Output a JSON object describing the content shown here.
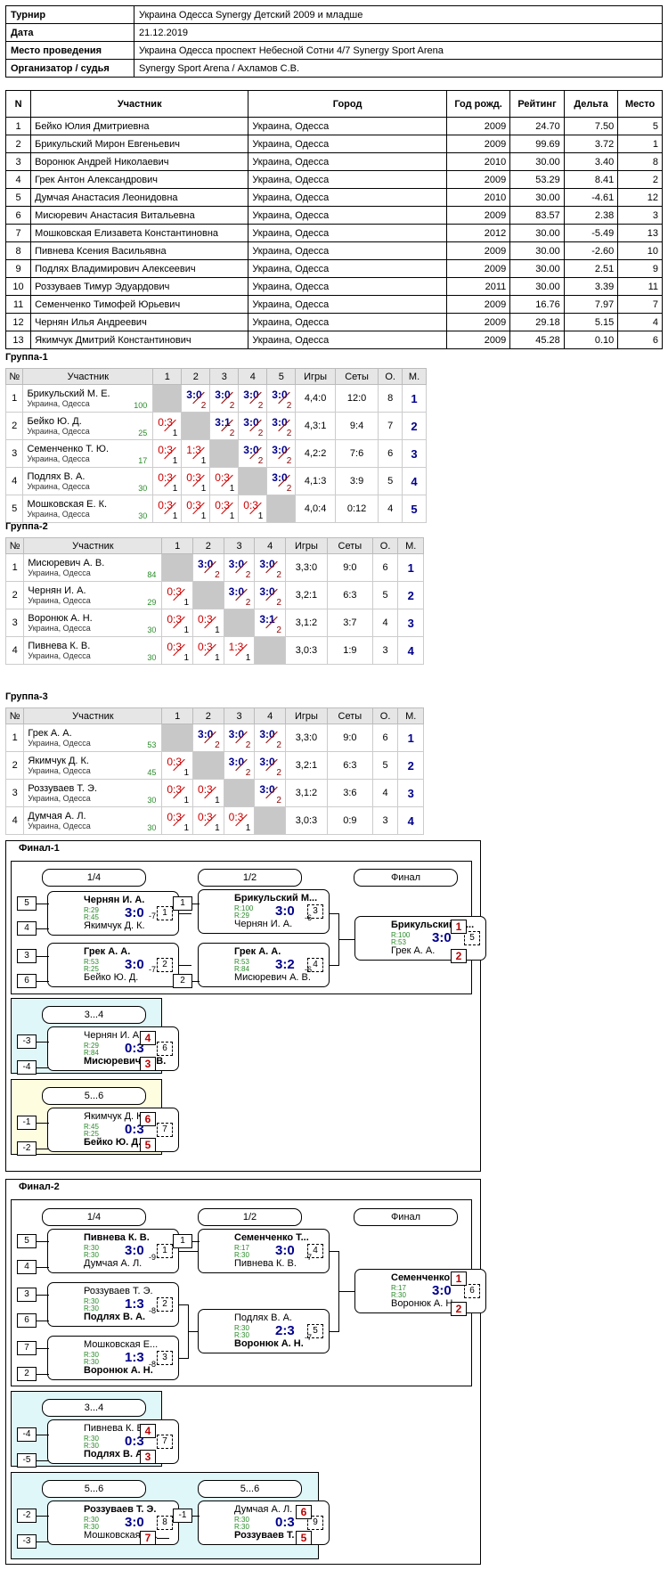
{
  "info": {
    "rows": [
      {
        "k": "Турнир",
        "v": "Украина Одесса  Synergy Детский 2009 и младше"
      },
      {
        "k": "Дата",
        "v": "21.12.2019"
      },
      {
        "k": "Место проведения",
        "v": "Украина Одесса проспект Небесной Сотни 4/7 Synergy Sport Arena"
      },
      {
        "k": "Организатор / судья",
        "v": "Synergy Sport Arena / Ахламов С.В."
      }
    ]
  },
  "participants": {
    "headers": [
      "N",
      "Участник",
      "Город",
      "Год рожд.",
      "Рейтинг",
      "Дельта",
      "Место"
    ],
    "rows": [
      [
        "1",
        "Бейко Юлия Дмитриевна",
        "Украина, Одесса",
        "2009",
        "24.70",
        "7.50",
        "5"
      ],
      [
        "2",
        "Брикульский Мирон Евгеньевич",
        "Украина, Одесса",
        "2009",
        "99.69",
        "3.72",
        "1"
      ],
      [
        "3",
        "Воронюк Андрей Николаевич",
        "Украина, Одесса",
        "2010",
        "30.00",
        "3.40",
        "8"
      ],
      [
        "4",
        "Грек Антон Александрович",
        "Украина, Одесса",
        "2009",
        "53.29",
        "8.41",
        "2"
      ],
      [
        "5",
        "Думчая Анастасия Леонидовна",
        "Украина, Одесса",
        "2010",
        "30.00",
        "-4.61",
        "12"
      ],
      [
        "6",
        "Мисюревич Анастасия Витальевна",
        "Украина, Одесса",
        "2009",
        "83.57",
        "2.38",
        "3"
      ],
      [
        "7",
        "Мошковская Елизавета Константиновна",
        "Украина, Одесса",
        "2012",
        "30.00",
        "-5.49",
        "13"
      ],
      [
        "8",
        "Пивнева Ксения Васильявна",
        "Украина, Одесса",
        "2009",
        "30.00",
        "-2.60",
        "10"
      ],
      [
        "9",
        "Подлях Владимирович Алексеевич",
        "Украина, Одесса",
        "2009",
        "30.00",
        "2.51",
        "9"
      ],
      [
        "10",
        "Роззуваев Тимур Эдуардович",
        "Украина, Одесса",
        "2011",
        "30.00",
        "3.39",
        "11"
      ],
      [
        "11",
        "Семенченко Тимофей Юрьевич",
        "Украина, Одесса",
        "2009",
        "16.76",
        "7.97",
        "7"
      ],
      [
        "12",
        "Чернян Илья Андреевич",
        "Украина, Одесса",
        "2009",
        "29.18",
        "5.15",
        "4"
      ],
      [
        "13",
        "Якимчук Дмитрий Константинович",
        "Украина, Одесса",
        "2009",
        "45.28",
        "0.10",
        "6"
      ]
    ]
  },
  "groups": [
    {
      "title": "Группа-1",
      "headers": [
        "№",
        "Участник",
        "1",
        "2",
        "3",
        "4",
        "5",
        "Игры",
        "Сеты",
        "О.",
        "М."
      ],
      "rows": [
        {
          "n": "1",
          "name": "Брикульский М. Е.",
          "city": "Украина, Одесса",
          "r": "100",
          "cells": [
            null,
            [
              "3:0",
              "2"
            ],
            [
              "3:0",
              "2"
            ],
            [
              "3:0",
              "2"
            ],
            [
              "3:0",
              "2"
            ]
          ],
          "games": "4,4:0",
          "sets": "12:0",
          "o": "8",
          "m": "1"
        },
        {
          "n": "2",
          "name": "Бейко Ю. Д.",
          "city": "Украина, Одесса",
          "r": "25",
          "cells": [
            [
              "0:3",
              "1"
            ],
            null,
            [
              "3:1",
              "2"
            ],
            [
              "3:0",
              "2"
            ],
            [
              "3:0",
              "2"
            ]
          ],
          "games": "4,3:1",
          "sets": "9:4",
          "o": "7",
          "m": "2"
        },
        {
          "n": "3",
          "name": "Семенченко Т. Ю.",
          "city": "Украина, Одесса",
          "r": "17",
          "cells": [
            [
              "0:3",
              "1"
            ],
            [
              "1:3",
              "1"
            ],
            null,
            [
              "3:0",
              "2"
            ],
            [
              "3:0",
              "2"
            ]
          ],
          "games": "4,2:2",
          "sets": "7:6",
          "o": "6",
          "m": "3"
        },
        {
          "n": "4",
          "name": "Подлях В. А.",
          "city": "Украина, Одесса",
          "r": "30",
          "cells": [
            [
              "0:3",
              "1"
            ],
            [
              "0:3",
              "1"
            ],
            [
              "0:3",
              "1"
            ],
            null,
            [
              "3:0",
              "2"
            ]
          ],
          "games": "4,1:3",
          "sets": "3:9",
          "o": "5",
          "m": "4"
        },
        {
          "n": "5",
          "name": "Мошковская Е. К.",
          "city": "Украина, Одесса",
          "r": "30",
          "cells": [
            [
              "0:3",
              "1"
            ],
            [
              "0:3",
              "1"
            ],
            [
              "0:3",
              "1"
            ],
            [
              "0:3",
              "1"
            ],
            null
          ],
          "games": "4,0:4",
          "sets": "0:12",
          "o": "4",
          "m": "5"
        }
      ]
    },
    {
      "title": "Группа-2",
      "headers": [
        "№",
        "Участник",
        "1",
        "2",
        "3",
        "4",
        "Игры",
        "Сеты",
        "О.",
        "М."
      ],
      "rows": [
        {
          "n": "1",
          "name": "Мисюревич А. В.",
          "city": "Украина, Одесса",
          "r": "84",
          "cells": [
            null,
            [
              "3:0",
              "2"
            ],
            [
              "3:0",
              "2"
            ],
            [
              "3:0",
              "2"
            ]
          ],
          "games": "3,3:0",
          "sets": "9:0",
          "o": "6",
          "m": "1"
        },
        {
          "n": "2",
          "name": "Чернян И. А.",
          "city": "Украина, Одесса",
          "r": "29",
          "cells": [
            [
              "0:3",
              "1"
            ],
            null,
            [
              "3:0",
              "2"
            ],
            [
              "3:0",
              "2"
            ]
          ],
          "games": "3,2:1",
          "sets": "6:3",
          "o": "5",
          "m": "2"
        },
        {
          "n": "3",
          "name": "Воронюк А. Н.",
          "city": "Украина, Одесса",
          "r": "30",
          "cells": [
            [
              "0:3",
              "1"
            ],
            [
              "0:3",
              "1"
            ],
            null,
            [
              "3:1",
              "2"
            ]
          ],
          "games": "3,1:2",
          "sets": "3:7",
          "o": "4",
          "m": "3"
        },
        {
          "n": "4",
          "name": "Пивнева К. В.",
          "city": "Украина, Одесса",
          "r": "30",
          "cells": [
            [
              "0:3",
              "1"
            ],
            [
              "0:3",
              "1"
            ],
            [
              "1:3",
              "1"
            ],
            null
          ],
          "games": "3,0:3",
          "sets": "1:9",
          "o": "3",
          "m": "4"
        }
      ]
    },
    {
      "title": "Группа-3",
      "headers": [
        "№",
        "Участник",
        "1",
        "2",
        "3",
        "4",
        "Игры",
        "Сеты",
        "О.",
        "М."
      ],
      "rows": [
        {
          "n": "1",
          "name": "Грек А. А.",
          "city": "Украина, Одесса",
          "r": "53",
          "cells": [
            null,
            [
              "3:0",
              "2"
            ],
            [
              "3:0",
              "2"
            ],
            [
              "3:0",
              "2"
            ]
          ],
          "games": "3,3:0",
          "sets": "9:0",
          "o": "6",
          "m": "1"
        },
        {
          "n": "2",
          "name": "Якимчук Д. К.",
          "city": "Украина, Одесса",
          "r": "45",
          "cells": [
            [
              "0:3",
              "1"
            ],
            null,
            [
              "3:0",
              "2"
            ],
            [
              "3:0",
              "2"
            ]
          ],
          "games": "3,2:1",
          "sets": "6:3",
          "o": "5",
          "m": "2"
        },
        {
          "n": "3",
          "name": "Роззуваев Т. Э.",
          "city": "Украина, Одесса",
          "r": "30",
          "cells": [
            [
              "0:3",
              "1"
            ],
            [
              "0:3",
              "1"
            ],
            null,
            [
              "3:0",
              "2"
            ]
          ],
          "games": "3,1:2",
          "sets": "3:6",
          "o": "4",
          "m": "3"
        },
        {
          "n": "4",
          "name": "Думчая А. Л.",
          "city": "Украина, Одесса",
          "r": "30",
          "cells": [
            [
              "0:3",
              "1"
            ],
            [
              "0:3",
              "1"
            ],
            [
              "0:3",
              "1"
            ],
            null
          ],
          "games": "3,0:3",
          "sets": "0:9",
          "o": "3",
          "m": "4"
        }
      ]
    }
  ],
  "final1": {
    "title": "Финал-1",
    "rounds": [
      "1/4",
      "1/2",
      "Финал"
    ],
    "m1": {
      "a": "Чернян И. А.",
      "ra": "R:29",
      "b": "Якимчук Д. К.",
      "rb": "R:45",
      "score": "3:0",
      "no": "1",
      "sa": "5",
      "sb": "4",
      "out": "-7"
    },
    "m2": {
      "a": "Грек А. А.",
      "ra": "R:53",
      "b": "Бейко Ю. Д.",
      "rb": "R:25",
      "score": "3:0",
      "no": "2",
      "sa": "3",
      "sb": "6",
      "out": "-7"
    },
    "m3": {
      "a": "Брикульский М...",
      "ra": "R:100",
      "b": "Чернян И. А.",
      "rb": "R:29",
      "score": "3:0",
      "no": "3",
      "sa": "1",
      "out": "-6"
    },
    "m4": {
      "a": "Грек А. А.",
      "ra": "R:53",
      "b": "Мисюревич А. В.",
      "rb": "R:84",
      "score": "3:2",
      "no": "4",
      "sb": "2",
      "out": "-6"
    },
    "m5": {
      "a": "Брикульский М...",
      "ra": "R:100",
      "b": "Грек А. А.",
      "rb": "R:53",
      "score": "3:0",
      "no": "5",
      "pa": "1",
      "pb": "2"
    },
    "b34": {
      "title": "3...4",
      "a": "Чернян И. А.",
      "ra": "R:29",
      "b": "Мисюревич А. В.",
      "rb": "R:84",
      "score": "0:3",
      "no": "6",
      "sa": "-3",
      "sb": "-4",
      "pa": "4",
      "pb": "3"
    },
    "b56": {
      "title": "5...6",
      "a": "Якимчук Д. К.",
      "ra": "R:45",
      "b": "Бейко Ю. Д.",
      "rb": "R:25",
      "score": "0:3",
      "no": "7",
      "sa": "-1",
      "sb": "-2",
      "pa": "6",
      "pb": "5"
    }
  },
  "final2": {
    "title": "Финал-2",
    "rounds": [
      "1/4",
      "1/2",
      "Финал"
    ],
    "m1": {
      "a": "Пивнева К. В.",
      "ra": "R:30",
      "b": "Думчая А. Л.",
      "rb": "R:30",
      "score": "3:0",
      "no": "1",
      "sa": "5",
      "sb": "4",
      "out": "-9"
    },
    "m2": {
      "a": "Роззуваев Т. Э.",
      "ra": "R:30",
      "b": "Подлях В. А.",
      "rb": "R:30",
      "score": "1:3",
      "no": "2",
      "sa": "3",
      "sb": "6",
      "out": "-8"
    },
    "m3": {
      "a": "Мошковская Е...",
      "ra": "R:30",
      "b": "Воронюк А. Н.",
      "rb": "R:30",
      "score": "1:3",
      "no": "3",
      "sa": "7",
      "sb": "2",
      "out": "-8"
    },
    "m4": {
      "a": "Семенченко Т...",
      "ra": "R:17",
      "b": "Пивнева К. В.",
      "rb": "R:30",
      "score": "3:0",
      "no": "4",
      "sa": "1",
      "out": "-7"
    },
    "m5": {
      "a": "Подлях В. А.",
      "ra": "R:30",
      "b": "Воронюк А. Н.",
      "rb": "R:30",
      "score": "2:3",
      "no": "5",
      "out": "-7"
    },
    "m6": {
      "a": "Семенченко Т...",
      "ra": "R:17",
      "b": "Воронюк А. Н.",
      "rb": "R:30",
      "score": "3:0",
      "no": "6",
      "pa": "1",
      "pb": "2"
    },
    "b34": {
      "title": "3...4",
      "a": "Пивнева К. В.",
      "ra": "R:30",
      "b": "Подлях В. А.",
      "rb": "R:30",
      "score": "0:3",
      "no": "7",
      "sa": "-4",
      "sb": "-5",
      "pa": "4",
      "pb": "3"
    },
    "b56": {
      "title": "5...6",
      "title2": "5...6",
      "a": "Роззуваев Т. Э.",
      "ra": "R:30",
      "b": "Мошковская Е...",
      "rb": "R:30",
      "score": "3:0",
      "no": "8",
      "sa": "-2",
      "sb": "-3",
      "pb": "7",
      "a2": "Думчая А. Л.",
      "ra2": "R:30",
      "b2": "Роззуваев Т. Э.",
      "rb2": "R:30",
      "score2": "0:3",
      "no2": "9",
      "sa2": "-1",
      "pa2": "6",
      "pb2": "5"
    }
  }
}
